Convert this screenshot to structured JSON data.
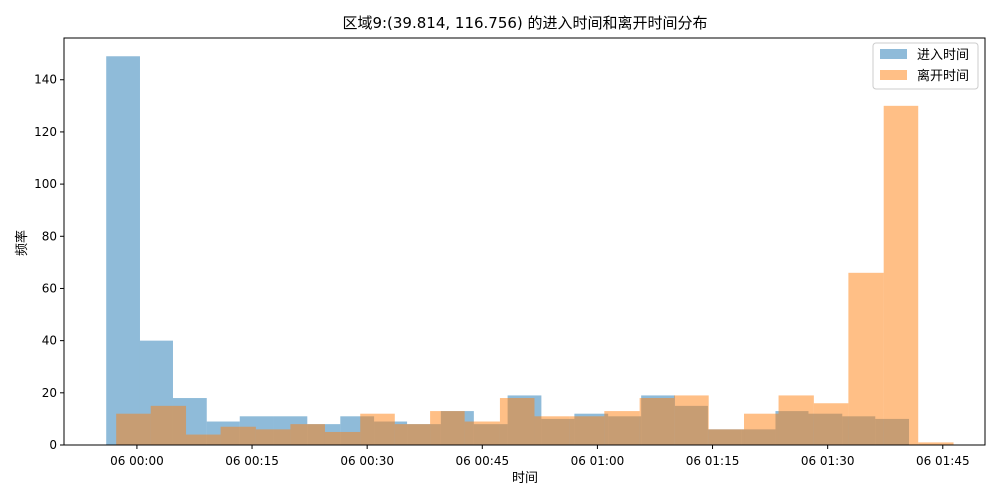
{
  "chart_data": {
    "type": "bar",
    "title": "区域9:(39.814, 116.756) 的进入时间和离开时间分布",
    "xlabel": "时间",
    "ylabel": "频率",
    "x_unit": "minutes after 06 00:00",
    "xlim": [
      -9.5,
      110.5
    ],
    "ylim": [
      0,
      156
    ],
    "x_ticks": [
      {
        "value": 0,
        "label": "06 00:00"
      },
      {
        "value": 15,
        "label": "06 00:15"
      },
      {
        "value": 30,
        "label": "06 00:30"
      },
      {
        "value": 45,
        "label": "06 00:45"
      },
      {
        "value": 60,
        "label": "06 01:00"
      },
      {
        "value": 75,
        "label": "06 01:15"
      },
      {
        "value": 90,
        "label": "06 01:30"
      },
      {
        "value": 105,
        "label": "06 01:45"
      }
    ],
    "y_ticks": [
      0,
      20,
      40,
      60,
      80,
      100,
      120,
      140
    ],
    "grid": false,
    "legend_position": "top-right",
    "series": [
      {
        "name": "进入时间",
        "color": "#1f77b4",
        "opacity": 0.5,
        "bins": [
          {
            "x0": -4.0,
            "x1": 0.4,
            "value": 149
          },
          {
            "x0": 0.4,
            "x1": 4.7,
            "value": 40
          },
          {
            "x0": 4.7,
            "x1": 9.1,
            "value": 18
          },
          {
            "x0": 9.1,
            "x1": 13.4,
            "value": 9
          },
          {
            "x0": 13.4,
            "x1": 17.8,
            "value": 11
          },
          {
            "x0": 17.8,
            "x1": 22.2,
            "value": 11
          },
          {
            "x0": 22.2,
            "x1": 26.5,
            "value": 8
          },
          {
            "x0": 26.5,
            "x1": 30.9,
            "value": 11
          },
          {
            "x0": 30.9,
            "x1": 35.2,
            "value": 9
          },
          {
            "x0": 35.2,
            "x1": 39.6,
            "value": 8
          },
          {
            "x0": 39.6,
            "x1": 43.9,
            "value": 13
          },
          {
            "x0": 43.9,
            "x1": 48.3,
            "value": 8
          },
          {
            "x0": 48.3,
            "x1": 52.7,
            "value": 19
          },
          {
            "x0": 52.7,
            "x1": 57.0,
            "value": 10
          },
          {
            "x0": 57.0,
            "x1": 61.4,
            "value": 12
          },
          {
            "x0": 61.4,
            "x1": 65.7,
            "value": 11
          },
          {
            "x0": 65.7,
            "x1": 70.1,
            "value": 19
          },
          {
            "x0": 70.1,
            "x1": 74.4,
            "value": 15
          },
          {
            "x0": 74.4,
            "x1": 78.8,
            "value": 6
          },
          {
            "x0": 78.8,
            "x1": 83.2,
            "value": 6
          },
          {
            "x0": 83.2,
            "x1": 87.5,
            "value": 13
          },
          {
            "x0": 87.5,
            "x1": 91.9,
            "value": 12
          },
          {
            "x0": 91.9,
            "x1": 96.2,
            "value": 11
          },
          {
            "x0": 96.2,
            "x1": 100.6,
            "value": 10
          }
        ]
      },
      {
        "name": "离开时间",
        "color": "#ff7f0e",
        "opacity": 0.5,
        "bins": [
          {
            "x0": -2.7,
            "x1": 1.8,
            "value": 12
          },
          {
            "x0": 1.8,
            "x1": 6.4,
            "value": 15
          },
          {
            "x0": 6.4,
            "x1": 10.9,
            "value": 4
          },
          {
            "x0": 10.9,
            "x1": 15.5,
            "value": 7
          },
          {
            "x0": 15.5,
            "x1": 20.0,
            "value": 6
          },
          {
            "x0": 20.0,
            "x1": 24.5,
            "value": 8
          },
          {
            "x0": 24.5,
            "x1": 29.1,
            "value": 5
          },
          {
            "x0": 29.1,
            "x1": 33.6,
            "value": 12
          },
          {
            "x0": 33.6,
            "x1": 38.2,
            "value": 8
          },
          {
            "x0": 38.2,
            "x1": 42.7,
            "value": 13
          },
          {
            "x0": 42.7,
            "x1": 47.3,
            "value": 9
          },
          {
            "x0": 47.3,
            "x1": 51.8,
            "value": 18
          },
          {
            "x0": 51.8,
            "x1": 56.4,
            "value": 11
          },
          {
            "x0": 56.4,
            "x1": 60.9,
            "value": 11
          },
          {
            "x0": 60.9,
            "x1": 65.5,
            "value": 13
          },
          {
            "x0": 65.5,
            "x1": 70.0,
            "value": 18
          },
          {
            "x0": 70.0,
            "x1": 74.5,
            "value": 19
          },
          {
            "x0": 74.5,
            "x1": 79.1,
            "value": 6
          },
          {
            "x0": 79.1,
            "x1": 83.6,
            "value": 12
          },
          {
            "x0": 83.6,
            "x1": 88.2,
            "value": 19
          },
          {
            "x0": 88.2,
            "x1": 92.7,
            "value": 16
          },
          {
            "x0": 92.7,
            "x1": 97.3,
            "value": 66
          },
          {
            "x0": 97.3,
            "x1": 101.8,
            "value": 130
          },
          {
            "x0": 101.8,
            "x1": 106.4,
            "value": 1
          }
        ]
      }
    ]
  }
}
